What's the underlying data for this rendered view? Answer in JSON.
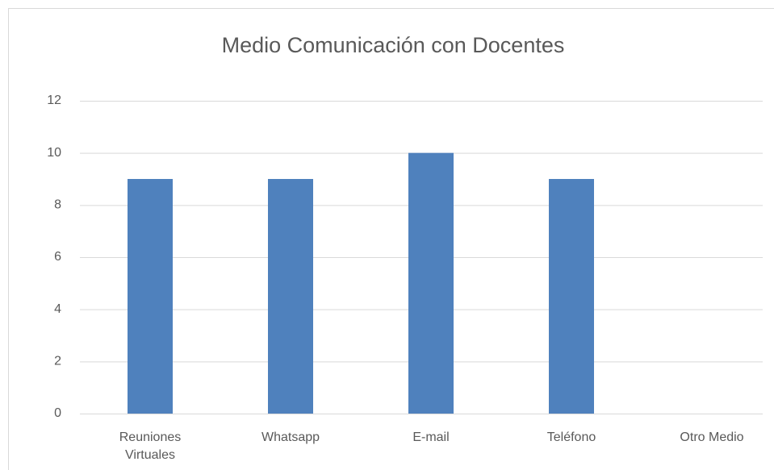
{
  "chart_data": {
    "type": "bar",
    "title": "Medio Comunicación con Docentes",
    "categories": [
      "Reuniones Virtuales",
      "Whatsapp",
      "E-mail",
      "Teléfono",
      "Otro Medio"
    ],
    "values": [
      9,
      9,
      10,
      9,
      0
    ],
    "color": "#4f81bd",
    "ylim": [
      0,
      12
    ],
    "yticks": [
      0,
      2,
      4,
      6,
      8,
      10,
      12
    ],
    "grid": true
  }
}
